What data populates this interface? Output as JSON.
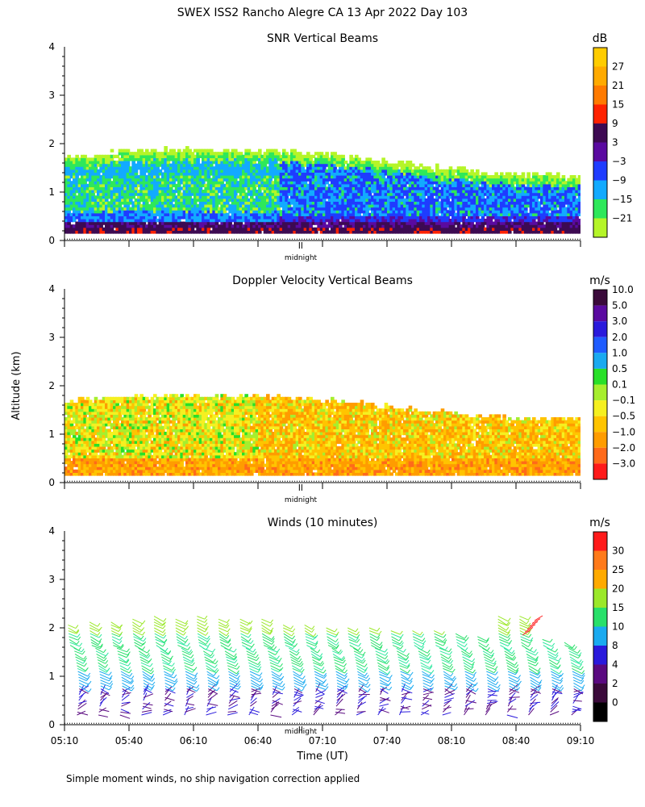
{
  "title": "SWEX ISS2 Rancho Alegre CA  13 Apr 2022 Day 103",
  "ylabel": "Altitude (km)",
  "xlabel": "Time (UT)",
  "footnote": "Simple moment winds, no ship navigation correction applied",
  "midnight_label": "midnight",
  "chart_data": [
    {
      "type": "heatmap",
      "title": "SNR Vertical Beams",
      "units": "dB",
      "ylim": [
        0,
        4
      ],
      "yticks": [
        "0",
        "1",
        "2",
        "3",
        "4"
      ],
      "xlim_minutes": [
        0,
        240
      ],
      "midnight_minute": 110,
      "colorbar": [
        {
          "label": "27",
          "color": "#ffaa00"
        },
        {
          "label": "21",
          "color": "#ff7a00"
        },
        {
          "label": "15",
          "color": "#ff2200"
        },
        {
          "label": "9",
          "color": "#3d0a52"
        },
        {
          "label": "3",
          "color": "#5a0aa0"
        },
        {
          "label": "−3",
          "color": "#1f3cff"
        },
        {
          "label": "−9",
          "color": "#12aaff"
        },
        {
          "label": "−15",
          "color": "#2ee85a"
        },
        {
          "label": "−21",
          "color": "#b5f528"
        }
      ],
      "colorbar_extra_top": "#ffcc00",
      "top_echo_km": {
        "minutes": [
          0,
          30,
          60,
          90,
          120,
          150,
          180,
          210,
          240
        ],
        "km": [
          1.68,
          1.82,
          1.85,
          1.85,
          1.75,
          1.62,
          1.45,
          1.33,
          1.32
        ]
      },
      "bottom_km": 0.15
    },
    {
      "type": "heatmap",
      "title": "Doppler Velocity Vertical Beams",
      "units": "m/s",
      "ylim": [
        0,
        4
      ],
      "yticks": [
        "0",
        "1",
        "2",
        "3",
        "4"
      ],
      "xlim_minutes": [
        0,
        240
      ],
      "midnight_minute": 110,
      "colorbar": [
        {
          "label": "10.0",
          "color": "#3a0a3a"
        },
        {
          "label": "5.0",
          "color": "#5a0aa0"
        },
        {
          "label": "3.0",
          "color": "#2a1adc"
        },
        {
          "label": "2.0",
          "color": "#1f5cff"
        },
        {
          "label": "1.0",
          "color": "#1aaaf0"
        },
        {
          "label": "0.5",
          "color": "#28e028"
        },
        {
          "label": "0.1",
          "color": "#a6ee2e"
        },
        {
          "label": "−0.1",
          "color": "#f5f020"
        },
        {
          "label": "−0.5",
          "color": "#ffc400"
        },
        {
          "label": "−1.0",
          "color": "#ff9c00"
        },
        {
          "label": "−2.0",
          "color": "#ff6a1a"
        },
        {
          "label": "−3.0",
          "color": "#ff1a1a"
        }
      ],
      "top_echo_km": {
        "minutes": [
          0,
          30,
          60,
          90,
          120,
          150,
          180,
          210,
          240
        ],
        "km": [
          1.65,
          1.75,
          1.78,
          1.75,
          1.68,
          1.55,
          1.4,
          1.3,
          1.28
        ]
      },
      "bottom_km": 0.15
    },
    {
      "type": "wind_barbs",
      "title": "Winds (10 minutes)",
      "units": "m/s",
      "ylim": [
        0,
        4
      ],
      "yticks": [
        "0",
        "1",
        "2",
        "3",
        "4"
      ],
      "xlim_minutes": [
        0,
        240
      ],
      "midnight_minute": 110,
      "xticks": [
        {
          "minute": 0,
          "label": "05:10"
        },
        {
          "minute": 30,
          "label": "05:40"
        },
        {
          "minute": 60,
          "label": "06:10"
        },
        {
          "minute": 90,
          "label": "06:40"
        },
        {
          "minute": 120,
          "label": "07:10"
        },
        {
          "minute": 150,
          "label": "07:40"
        },
        {
          "minute": 180,
          "label": "08:10"
        },
        {
          "minute": 210,
          "label": "08:40"
        },
        {
          "minute": 240,
          "label": "09:10"
        }
      ],
      "colorbar": [
        {
          "label": "30",
          "color": "#ff7a1a"
        },
        {
          "label": "25",
          "color": "#ffaa00"
        },
        {
          "label": "20",
          "color": "#9be82a"
        },
        {
          "label": "15",
          "color": "#28e06a"
        },
        {
          "label": "10",
          "color": "#1aaaf0"
        },
        {
          "label": "8",
          "color": "#2a1adc"
        },
        {
          "label": "4",
          "color": "#5a0a80"
        },
        {
          "label": "2",
          "color": "#3a0a3a"
        },
        {
          "label": "0",
          "color": "#000000"
        }
      ],
      "colorbar_extra_top": "#ff1a1a",
      "profile_minutes": [
        5,
        15,
        25,
        35,
        45,
        55,
        65,
        75,
        85,
        95,
        105,
        115,
        125,
        135,
        145,
        155,
        165,
        175,
        185,
        195,
        205,
        215,
        225,
        235
      ],
      "profile_top_km": [
        2.1,
        2.15,
        2.15,
        2.2,
        2.25,
        2.2,
        2.3,
        2.2,
        2.2,
        2.2,
        2.1,
        2.1,
        2.05,
        2.05,
        2.05,
        2.0,
        1.95,
        1.95,
        1.9,
        1.85,
        2.3,
        2.3,
        1.8,
        1.75
      ],
      "profile_bottom_km": 0.2
    }
  ]
}
